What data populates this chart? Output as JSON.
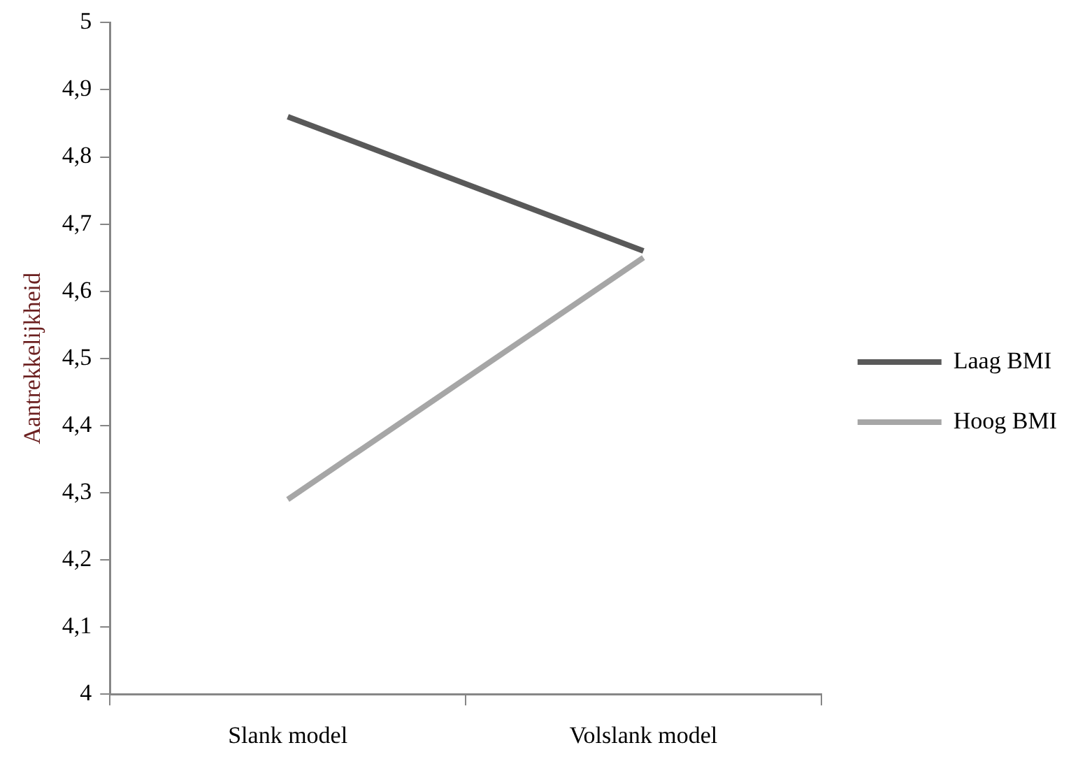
{
  "chart_data": {
    "type": "line",
    "ylabel": "Aantrekkelijkheid",
    "categories": [
      "Slank model",
      "Volslank model"
    ],
    "series": [
      {
        "name": "Laag BMI",
        "color": "#595959",
        "values": [
          4.86,
          4.66
        ]
      },
      {
        "name": "Hoog BMI",
        "color": "#a6a6a6",
        "values": [
          4.29,
          4.65
        ]
      }
    ],
    "ylim": [
      4,
      5
    ],
    "yticks": [
      4,
      {
        "value": 4.1,
        "label": "4,1"
      },
      {
        "value": 4.2,
        "label": "4,2"
      },
      {
        "value": 4.3,
        "label": "4,3"
      },
      {
        "value": 4.4,
        "label": "4,4"
      },
      {
        "value": 4.5,
        "label": "4,5"
      },
      {
        "value": 4.6,
        "label": "4,6"
      },
      {
        "value": 4.7,
        "label": "4,7"
      },
      {
        "value": 4.8,
        "label": "4,8"
      },
      {
        "value": 4.9,
        "label": "4,9"
      },
      5
    ],
    "grid": false,
    "legend": "right",
    "marker": "none",
    "line_style": "solid"
  }
}
